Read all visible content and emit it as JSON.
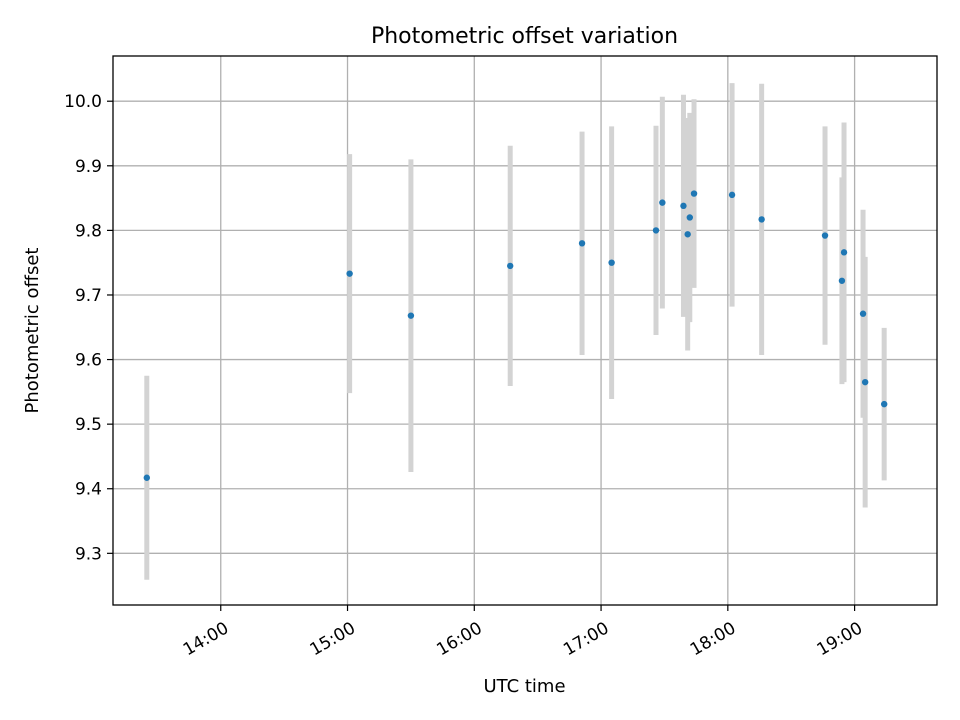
{
  "chart_data": {
    "type": "scatter",
    "title": "Photometric offset variation",
    "xlabel": "UTC time",
    "ylabel": "Photometric offset",
    "x_ticks": [
      "14:00",
      "15:00",
      "16:00",
      "17:00",
      "18:00",
      "19:00"
    ],
    "y_ticks": [
      "9.3",
      "9.4",
      "9.5",
      "9.6",
      "9.7",
      "9.8",
      "9.9",
      "10.0"
    ],
    "xlim": [
      "13:09",
      "19:39"
    ],
    "ylim": [
      9.22,
      10.07
    ],
    "grid": true,
    "colors": {
      "marker": "#1f77b4",
      "errorbar": "#d3d3d3",
      "grid": "#b0b0b0",
      "axes": "#000000"
    },
    "points": [
      {
        "x": "13:25",
        "y": 9.417,
        "yerr": 0.158
      },
      {
        "x": "15:01",
        "y": 9.733,
        "yerr": 0.185
      },
      {
        "x": "15:30",
        "y": 9.668,
        "yerr": 0.242
      },
      {
        "x": "16:17",
        "y": 9.745,
        "yerr": 0.186
      },
      {
        "x": "16:51",
        "y": 9.78,
        "yerr": 0.173
      },
      {
        "x": "17:05",
        "y": 9.75,
        "yerr": 0.211
      },
      {
        "x": "17:26",
        "y": 9.8,
        "yerr": 0.162
      },
      {
        "x": "17:29",
        "y": 9.843,
        "yerr": 0.164
      },
      {
        "x": "17:39",
        "y": 9.838,
        "yerr": 0.172
      },
      {
        "x": "17:41",
        "y": 9.794,
        "yerr": 0.18
      },
      {
        "x": "17:42",
        "y": 9.82,
        "yerr": 0.162
      },
      {
        "x": "17:44",
        "y": 9.857,
        "yerr": 0.146
      },
      {
        "x": "18:02",
        "y": 9.855,
        "yerr": 0.173
      },
      {
        "x": "18:16",
        "y": 9.817,
        "yerr": 0.21
      },
      {
        "x": "18:46",
        "y": 9.792,
        "yerr": 0.169
      },
      {
        "x": "18:54",
        "y": 9.722,
        "yerr": 0.16
      },
      {
        "x": "18:55",
        "y": 9.766,
        "yerr": 0.201
      },
      {
        "x": "19:04",
        "y": 9.671,
        "yerr": 0.161
      },
      {
        "x": "19:05",
        "y": 9.565,
        "yerr": 0.194
      },
      {
        "x": "19:14",
        "y": 9.531,
        "yerr": 0.118
      }
    ]
  }
}
